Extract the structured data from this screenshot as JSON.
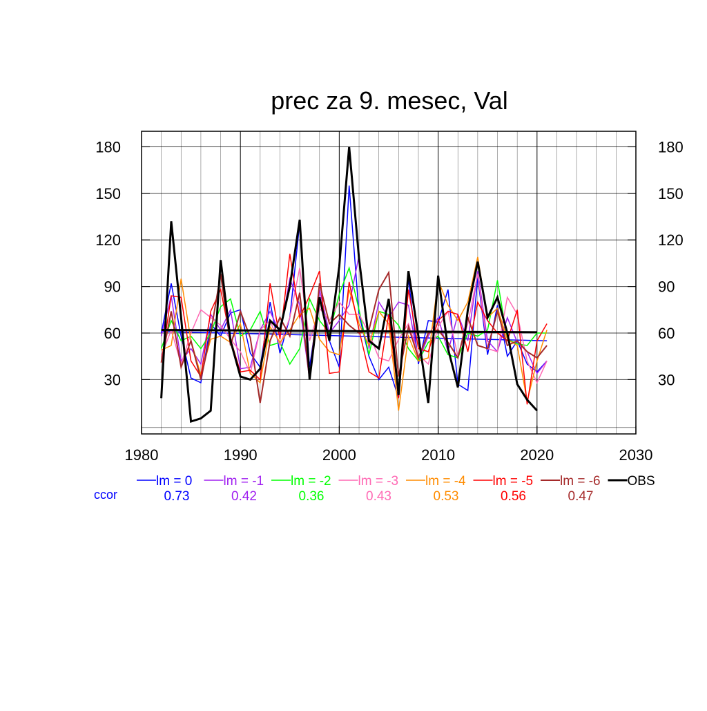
{
  "chart_data": {
    "type": "line",
    "title": "prec za 9. mesec, Val",
    "xlabel": "",
    "ylabel": "",
    "xlim": [
      1980,
      2030
    ],
    "ylim": [
      -5,
      190
    ],
    "x_ticks": [
      1980,
      1990,
      2000,
      2010,
      2020,
      2030
    ],
    "y_ticks": [
      30,
      60,
      90,
      120,
      150,
      180
    ],
    "grid": true,
    "ccor_label": "ccor",
    "years": [
      1982,
      1983,
      1984,
      1985,
      1986,
      1987,
      1988,
      1989,
      1990,
      1991,
      1992,
      1993,
      1994,
      1995,
      1996,
      1997,
      1998,
      1999,
      2000,
      2001,
      2002,
      2003,
      2004,
      2005,
      2006,
      2007,
      2008,
      2009,
      2010,
      2011,
      2012,
      2013,
      2014,
      2015,
      2016,
      2017,
      2018,
      2019,
      2020,
      2021
    ],
    "series": [
      {
        "name": "lm = 0",
        "color": "#0000ff",
        "width": 1.5,
        "ccor": "0.73",
        "values": [
          60,
          92,
          58,
          31,
          28,
          66,
          58,
          73,
          75,
          47,
          38,
          80,
          47,
          70,
          131,
          38,
          82,
          55,
          38,
          155,
          72,
          45,
          30,
          38,
          18,
          95,
          40,
          68,
          67,
          88,
          27,
          23,
          96,
          46,
          78,
          45,
          55,
          40,
          35,
          42
        ],
        "trend": [
          61,
          55
        ]
      },
      {
        "name": "lm = -1",
        "color": "#a020f0",
        "width": 1.5,
        "ccor": "0.42",
        "values": [
          58,
          84,
          42,
          50,
          40,
          72,
          62,
          75,
          37,
          38,
          62,
          74,
          60,
          95,
          78,
          30,
          88,
          60,
          68,
          78,
          110,
          50,
          80,
          70,
          80,
          78,
          42,
          58,
          70,
          48,
          72,
          55,
          100,
          55,
          48,
          70,
          54,
          48,
          34,
          42
        ],
        "trend": null
      },
      {
        "name": "lm = -2",
        "color": "#00ff00",
        "width": 1.5,
        "ccor": "0.36",
        "values": [
          50,
          68,
          55,
          58,
          50,
          60,
          77,
          82,
          58,
          62,
          74,
          52,
          54,
          40,
          50,
          82,
          68,
          60,
          85,
          102,
          75,
          46,
          74,
          72,
          65,
          50,
          42,
          54,
          58,
          46,
          44,
          60,
          58,
          62,
          94,
          56,
          53,
          52,
          60,
          60
        ],
        "trend": null
      },
      {
        "name": "lm = -3",
        "color": "#ff69b4",
        "width": 1.5,
        "ccor": "0.43",
        "values": [
          45,
          62,
          40,
          60,
          75,
          70,
          65,
          56,
          48,
          34,
          62,
          68,
          52,
          70,
          102,
          55,
          76,
          68,
          80,
          72,
          72,
          60,
          44,
          42,
          56,
          66,
          46,
          40,
          64,
          74,
          45,
          66,
          98,
          50,
          48,
          83,
          72,
          42,
          28,
          42
        ],
        "trend": null
      },
      {
        "name": "lm = -4",
        "color": "#ff8c00",
        "width": 1.5,
        "ccor": "0.53",
        "values": [
          49,
          52,
          95,
          55,
          33,
          56,
          58,
          54,
          66,
          34,
          28,
          64,
          54,
          62,
          72,
          76,
          56,
          48,
          46,
          88,
          66,
          52,
          74,
          66,
          10,
          58,
          42,
          44,
          94,
          78,
          68,
          80,
          109,
          70,
          76,
          56,
          52,
          16,
          42,
          62
        ],
        "trend": null
      },
      {
        "name": "lm = -5",
        "color": "#ff0000",
        "width": 1.5,
        "ccor": "0.56",
        "values": [
          41,
          84,
          83,
          42,
          32,
          74,
          88,
          56,
          35,
          36,
          30,
          92,
          56,
          111,
          70,
          84,
          100,
          34,
          35,
          93,
          62,
          35,
          31,
          72,
          18,
          88,
          50,
          48,
          68,
          74,
          72,
          48,
          80,
          68,
          60,
          55,
          75,
          14,
          55,
          66
        ],
        "trend": null
      },
      {
        "name": "lm = -6",
        "color": "#a52a2a",
        "width": 2,
        "ccor": "0.47",
        "values": [
          41,
          74,
          38,
          55,
          30,
          60,
          98,
          52,
          74,
          57,
          15,
          55,
          70,
          58,
          86,
          30,
          92,
          66,
          72,
          65,
          60,
          62,
          88,
          99,
          32,
          64,
          44,
          60,
          62,
          54,
          44,
          70,
          52,
          50,
          74,
          52,
          55,
          48,
          44,
          52
        ],
        "trend": null
      },
      {
        "name": "OBS",
        "color": "#000000",
        "width": 3,
        "ccor": "",
        "values": [
          18,
          132,
          70,
          3,
          5,
          10,
          107,
          55,
          32,
          30,
          37,
          68,
          62,
          90,
          133,
          30,
          83,
          55,
          103,
          180,
          108,
          55,
          50,
          82,
          20,
          100,
          58,
          15,
          97,
          50,
          25,
          75,
          106,
          70,
          83,
          60,
          27,
          17,
          10,
          null
        ],
        "trend": [
          62,
          60.5
        ]
      }
    ]
  }
}
